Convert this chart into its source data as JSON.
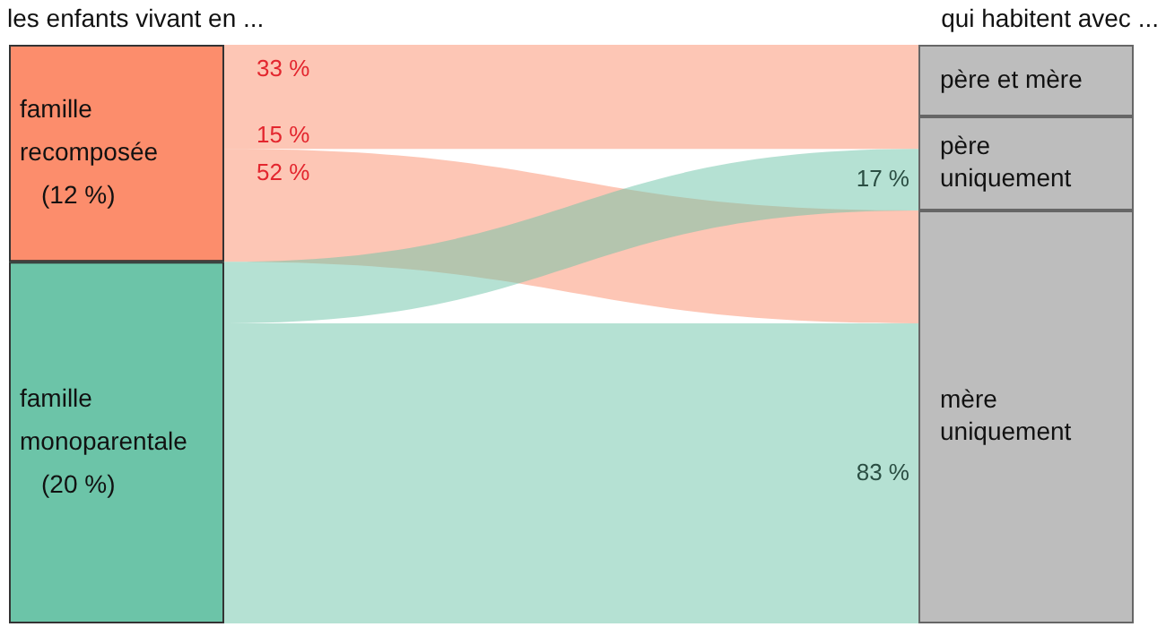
{
  "chart_data": {
    "type": "other",
    "title": "les enfants vivant en ...",
    "subtitle": "qui habitent avec ...",
    "categories": [
      "famille recomposée",
      "famille monoparentale"
    ],
    "values": [
      12,
      20
    ],
    "value_labels": [
      "(12 %)",
      "(20 %)"
    ],
    "colors": [
      "#fc8d6c",
      "#6cc4a8"
    ],
    "series": [
      {
        "name": "père et mère",
        "values": [
          33,
          null
        ],
        "colors": [
          "#fc8d6c",
          null
        ],
        "value_labels": [
          "33 %",
          null
        ]
      },
      {
        "name": "père uniquement",
        "values": [
          15,
          17
        ],
        "colors": [
          "#fc8d6c",
          "#6cc4a8"
        ],
        "value_labels": [
          "15 %",
          "17 %"
        ]
      },
      {
        "name": "mère uniquement",
        "values": [
          52,
          83
        ],
        "colors": [
          "#fc8d6c",
          "#6cc4a8"
        ],
        "value_labels": [
          "52 %",
          "83 %"
        ]
      }
    ],
    "data_labels": true
  }
}
